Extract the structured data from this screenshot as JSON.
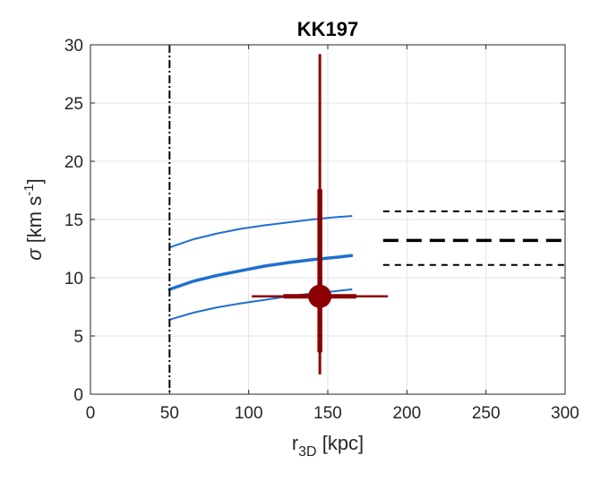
{
  "chart_data": {
    "type": "line",
    "title": "KK197",
    "xlabel": {
      "main": "r",
      "sub": "3D",
      "unit": " [kpc]"
    },
    "ylabel": {
      "symbol": "σ",
      "pre": " [km s",
      "sup": "-1",
      "post": "]"
    },
    "xlim": [
      0,
      300
    ],
    "ylim": [
      0,
      30
    ],
    "xticks": [
      0,
      50,
      100,
      150,
      200,
      250,
      300
    ],
    "yticks": [
      0,
      5,
      10,
      15,
      20,
      25,
      30
    ],
    "grid": true,
    "colors": {
      "model": "#1f6fd0",
      "point": "#8b0000",
      "reference": "#000000",
      "grid": "#e3e3e3"
    },
    "vertical_line": {
      "x": 50,
      "style": "dash-dot"
    },
    "model_curves": [
      {
        "x": [
          50,
          65,
          80,
          95,
          110,
          125,
          140,
          155,
          165
        ],
        "y": [
          12.6,
          13.3,
          13.8,
          14.2,
          14.5,
          14.75,
          15.0,
          15.2,
          15.3
        ],
        "style": "thin"
      },
      {
        "x": [
          50,
          65,
          80,
          95,
          110,
          125,
          140,
          155,
          165
        ],
        "y": [
          9.0,
          9.7,
          10.2,
          10.6,
          11.0,
          11.3,
          11.55,
          11.75,
          11.9
        ],
        "style": "thick"
      },
      {
        "x": [
          50,
          65,
          80,
          95,
          110,
          125,
          140,
          155,
          165
        ],
        "y": [
          6.4,
          7.0,
          7.45,
          7.8,
          8.1,
          8.4,
          8.65,
          8.85,
          9.0
        ],
        "style": "thin"
      }
    ],
    "reference_lines": [
      {
        "y": 15.7,
        "x_range": [
          185,
          300
        ],
        "style": "thin-dashed"
      },
      {
        "y": 13.2,
        "x_range": [
          185,
          300
        ],
        "style": "thick-dashed"
      },
      {
        "y": 11.1,
        "x_range": [
          185,
          300
        ],
        "style": "thin-dashed"
      }
    ],
    "point": {
      "x": 145,
      "y": 8.4,
      "y_err_outer": [
        1.7,
        29.2
      ],
      "y_err_inner": [
        3.6,
        17.6
      ],
      "x_err_outer": [
        102,
        188
      ],
      "x_err_inner": [
        122,
        168
      ]
    }
  }
}
